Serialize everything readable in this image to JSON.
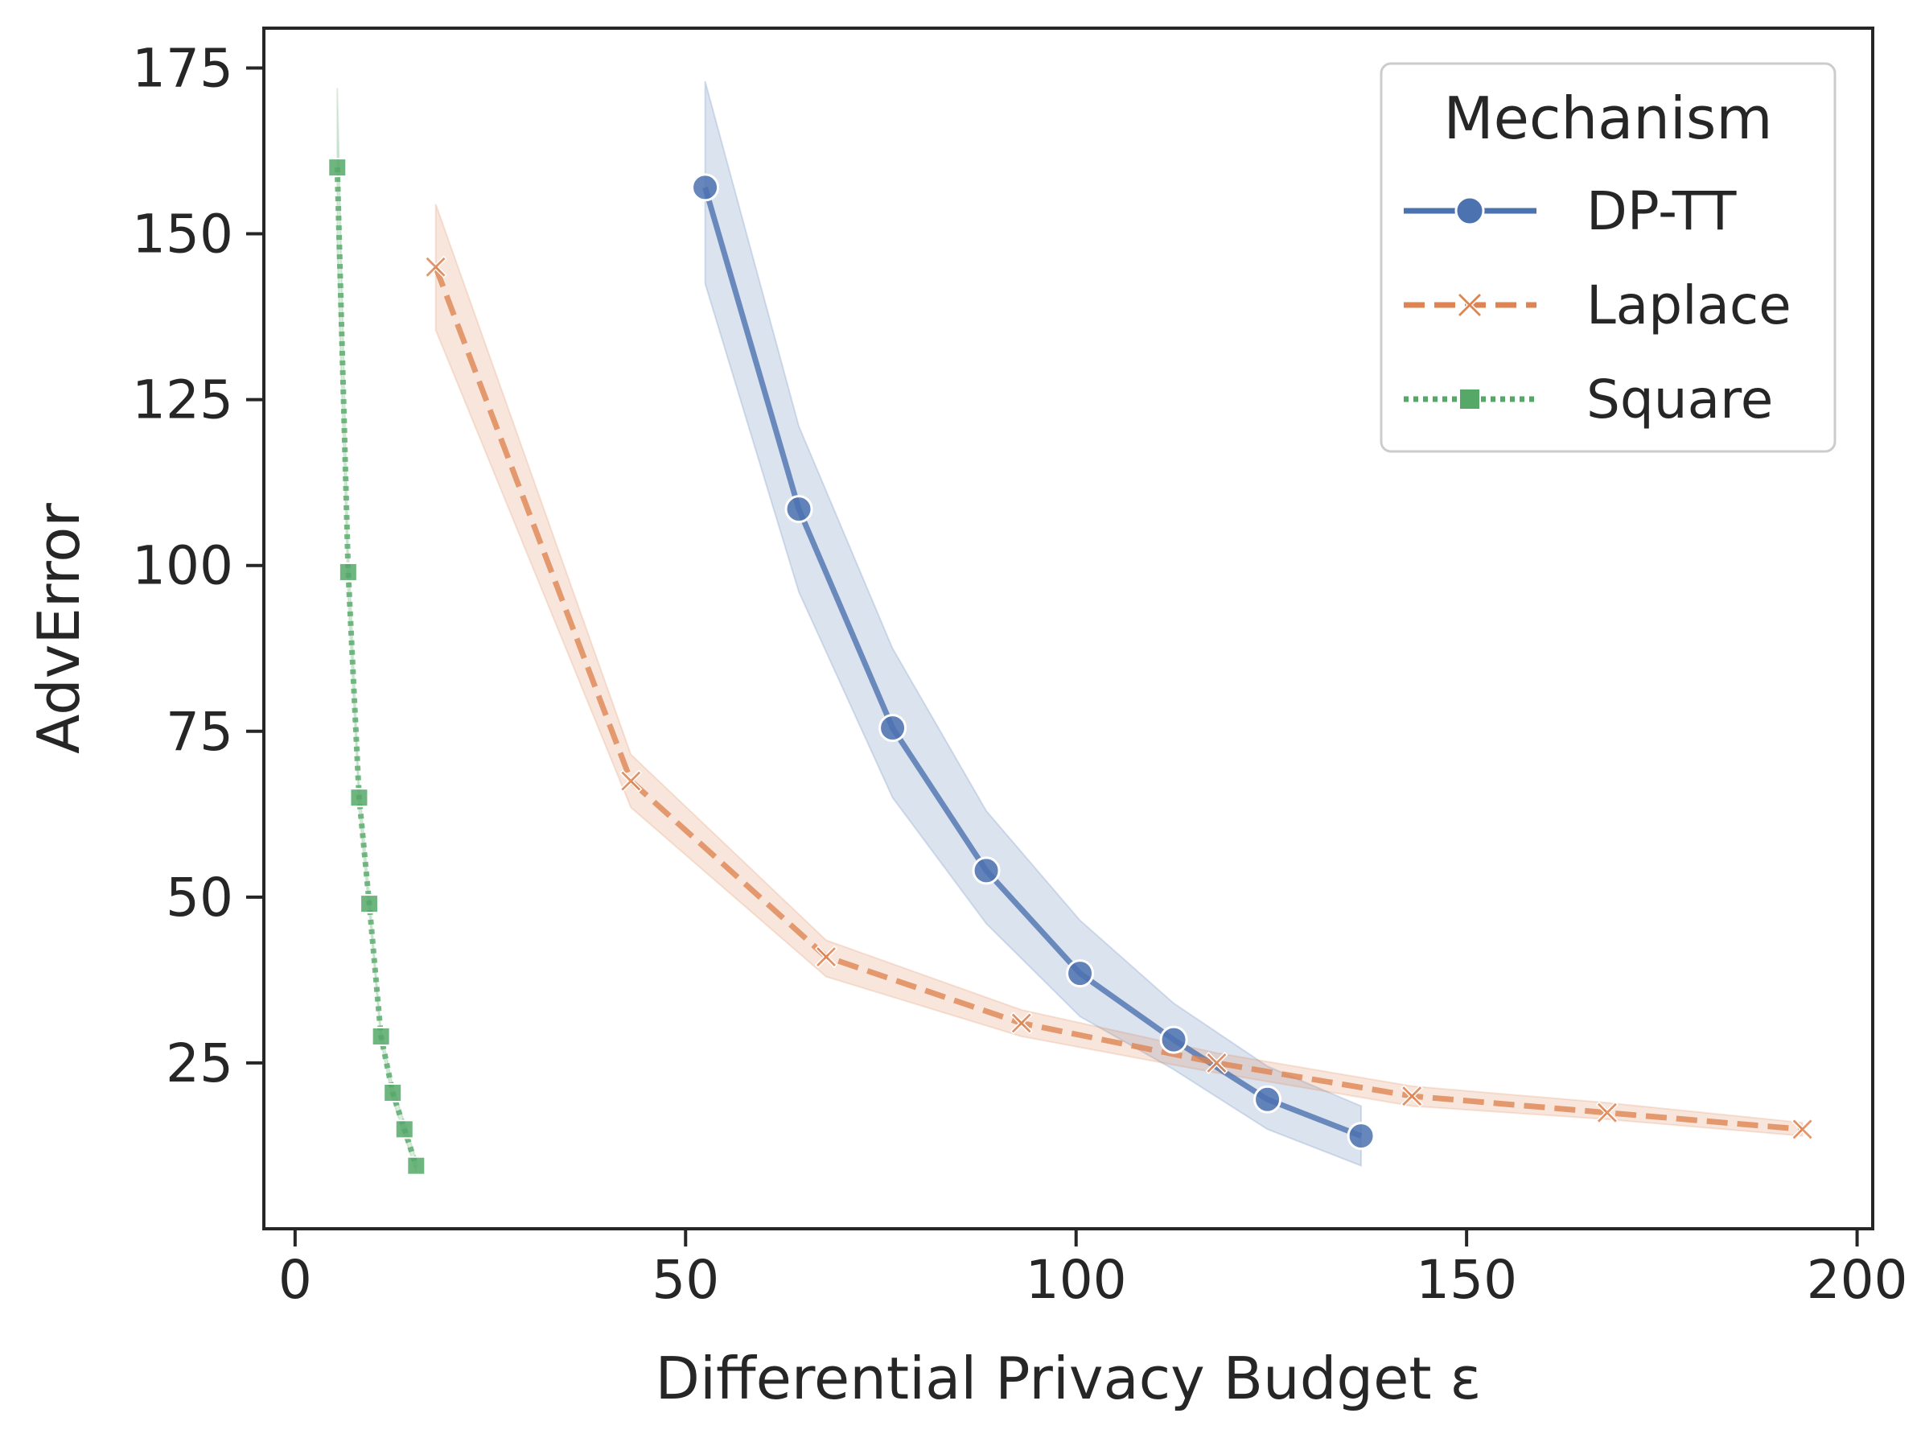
{
  "chart_data": {
    "type": "line",
    "title": "",
    "xlabel": "Differential Privacy Budget ε",
    "ylabel": "AdvError",
    "xlim": [
      -4,
      202
    ],
    "ylim": [
      0,
      181
    ],
    "xticks": [
      0,
      50,
      100,
      150,
      200
    ],
    "yticks": [
      25,
      50,
      75,
      100,
      125,
      150,
      175
    ],
    "grid": false,
    "legend": {
      "title": "Mechanism",
      "placement": "top-right"
    },
    "series": [
      {
        "name": "DP-TT",
        "color": "#4c72b0",
        "linestyle": "solid",
        "marker": "circle",
        "x": [
          52.5,
          64.5,
          76.5,
          88.5,
          100.5,
          112.5,
          124.5,
          136.5
        ],
        "y": [
          157,
          108.5,
          75.5,
          54,
          38.5,
          28.5,
          19.5,
          14
        ],
        "ci_upper": [
          173,
          121,
          87.5,
          63,
          46.5,
          34,
          24.5,
          18.5
        ],
        "ci_lower": [
          142.5,
          96,
          65,
          46,
          32,
          24,
          15,
          9.5
        ]
      },
      {
        "name": "Laplace",
        "color": "#dd8452",
        "linestyle": "dashed",
        "marker": "x",
        "x": [
          18,
          43,
          68,
          93,
          118,
          143,
          168,
          193
        ],
        "y": [
          145,
          67.5,
          41,
          31,
          25,
          20,
          17.5,
          15
        ],
        "ci_upper": [
          154.5,
          71.5,
          43.5,
          33,
          26.5,
          21.5,
          19,
          16
        ],
        "ci_lower": [
          135.5,
          63.5,
          38,
          29,
          23.5,
          18.5,
          16.5,
          14
        ]
      },
      {
        "name": "Square",
        "color": "#55a868",
        "linestyle": "dotted",
        "marker": "square",
        "x": [
          5.4,
          6.8,
          8.2,
          9.5,
          11,
          12.5,
          14,
          15.5
        ],
        "y": [
          160,
          99,
          65,
          49,
          29,
          20.5,
          15,
          9.5
        ],
        "ci_upper": [
          172,
          103,
          67,
          50.5,
          30,
          21.5,
          16,
          10.5
        ],
        "ci_lower": [
          148,
          95,
          63,
          47.5,
          28,
          19.5,
          14,
          8.5
        ]
      }
    ]
  }
}
